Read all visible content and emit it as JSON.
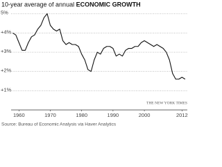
{
  "chart_data": {
    "type": "line",
    "title": "10-year average of annual",
    "title_emphasis": "ECONOMIC GROWTH",
    "source": "Source: Bureau of Economic Analysis via Haver Analytics",
    "credit": "THE NEW YORK TIMES",
    "x": [
      1958,
      1959,
      1960,
      1961,
      1962,
      1963,
      1964,
      1965,
      1966,
      1967,
      1968,
      1969,
      1970,
      1971,
      1972,
      1973,
      1974,
      1975,
      1976,
      1977,
      1978,
      1979,
      1980,
      1981,
      1982,
      1983,
      1984,
      1985,
      1986,
      1987,
      1988,
      1989,
      1990,
      1991,
      1992,
      1993,
      1994,
      1995,
      1996,
      1997,
      1998,
      1999,
      2000,
      2001,
      2002,
      2003,
      2004,
      2005,
      2006,
      2007,
      2008,
      2009,
      2010,
      2011,
      2012,
      2013
    ],
    "series": [
      {
        "color": "#111111",
        "values": [
          4.0,
          3.9,
          3.5,
          3.1,
          3.1,
          3.5,
          3.8,
          3.9,
          4.2,
          4.4,
          4.8,
          5.0,
          4.4,
          4.2,
          4.1,
          4.2,
          3.6,
          3.4,
          3.5,
          3.4,
          3.4,
          3.3,
          2.9,
          2.6,
          2.1,
          2.0,
          2.6,
          3.0,
          2.9,
          3.2,
          3.3,
          3.3,
          3.2,
          2.8,
          2.9,
          2.8,
          3.1,
          3.2,
          3.2,
          3.3,
          3.3,
          3.5,
          3.6,
          3.5,
          3.4,
          3.3,
          3.4,
          3.3,
          3.2,
          3.0,
          2.6,
          1.9,
          1.6,
          1.6,
          1.7,
          1.6
        ]
      }
    ],
    "xlim": [
      1957.5,
      2013.7
    ],
    "xticks": [
      1960,
      1970,
      1980,
      1990,
      2000,
      2012
    ],
    "ylim": [
      0,
      5.1
    ],
    "yticks": [
      {
        "value": 1,
        "label": "+1%"
      },
      {
        "value": 2,
        "label": "+2%"
      },
      {
        "value": 3,
        "label": "+3%"
      },
      {
        "value": 4,
        "label": "+4%"
      },
      {
        "value": 5,
        "label": "5%"
      }
    ],
    "grid": true
  }
}
